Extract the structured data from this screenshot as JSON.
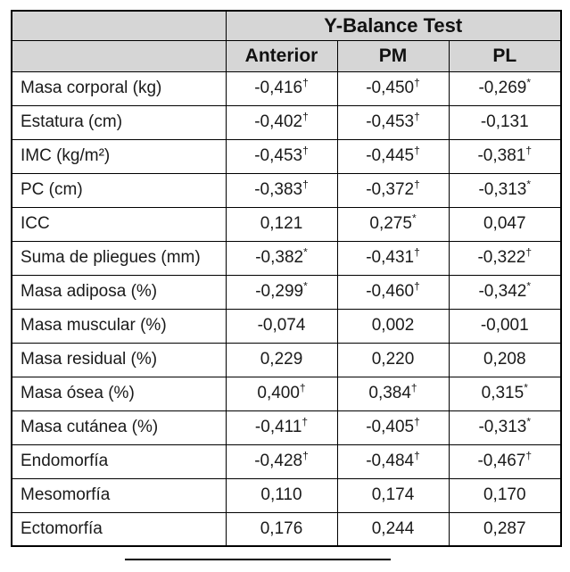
{
  "chart_data": {
    "type": "table",
    "title": "Y-Balance Test",
    "columns": [
      "Anterior",
      "PM",
      "PL"
    ],
    "legend_marks": [
      "†",
      "*"
    ],
    "colors": {
      "header_bg": "#d6d6d6",
      "border": "#000000",
      "text": "#1a1a1a"
    },
    "rows": [
      {
        "label": "Masa corporal (kg)",
        "cells": [
          {
            "v": "-0,416",
            "m": "†"
          },
          {
            "v": "-0,450",
            "m": "†"
          },
          {
            "v": "-0,269",
            "m": "*"
          }
        ]
      },
      {
        "label": "Estatura (cm)",
        "cells": [
          {
            "v": "-0,402",
            "m": "†"
          },
          {
            "v": "-0,453",
            "m": "†"
          },
          {
            "v": "-0,131",
            "m": ""
          }
        ]
      },
      {
        "label": "IMC (kg/m²)",
        "cells": [
          {
            "v": "-0,453",
            "m": "†"
          },
          {
            "v": "-0,445",
            "m": "†"
          },
          {
            "v": "-0,381",
            "m": "†"
          }
        ]
      },
      {
        "label": "PC (cm)",
        "cells": [
          {
            "v": "-0,383",
            "m": "†"
          },
          {
            "v": "-0,372",
            "m": "†"
          },
          {
            "v": "-0,313",
            "m": "*"
          }
        ]
      },
      {
        "label": "ICC",
        "cells": [
          {
            "v": "0,121",
            "m": ""
          },
          {
            "v": "0,275",
            "m": "*"
          },
          {
            "v": "0,047",
            "m": ""
          }
        ]
      },
      {
        "label": "Suma de pliegues (mm)",
        "cells": [
          {
            "v": "-0,382",
            "m": "*"
          },
          {
            "v": "-0,431",
            "m": "†"
          },
          {
            "v": "-0,322",
            "m": "†"
          }
        ]
      },
      {
        "label": "Masa adiposa (%)",
        "cells": [
          {
            "v": "-0,299",
            "m": "*"
          },
          {
            "v": "-0,460",
            "m": "†"
          },
          {
            "v": "-0,342",
            "m": "*"
          }
        ]
      },
      {
        "label": "Masa muscular (%)",
        "cells": [
          {
            "v": "-0,074",
            "m": ""
          },
          {
            "v": "0,002",
            "m": ""
          },
          {
            "v": "-0,001",
            "m": ""
          }
        ]
      },
      {
        "label": "Masa residual (%)",
        "cells": [
          {
            "v": "0,229",
            "m": ""
          },
          {
            "v": "0,220",
            "m": ""
          },
          {
            "v": "0,208",
            "m": ""
          }
        ]
      },
      {
        "label": "Masa ósea (%)",
        "cells": [
          {
            "v": "0,400",
            "m": "†"
          },
          {
            "v": "0,384",
            "m": "†"
          },
          {
            "v": "0,315",
            "m": "*"
          }
        ]
      },
      {
        "label": "Masa cutánea (%)",
        "cells": [
          {
            "v": "-0,411",
            "m": "†"
          },
          {
            "v": "-0,405",
            "m": "†"
          },
          {
            "v": "-0,313",
            "m": "*"
          }
        ]
      },
      {
        "label": "Endomorfía",
        "cells": [
          {
            "v": "-0,428",
            "m": "†"
          },
          {
            "v": "-0,484",
            "m": "†"
          },
          {
            "v": "-0,467",
            "m": "†"
          }
        ]
      },
      {
        "label": "Mesomorfía",
        "cells": [
          {
            "v": "0,110",
            "m": ""
          },
          {
            "v": "0,174",
            "m": ""
          },
          {
            "v": "0,170",
            "m": ""
          }
        ]
      },
      {
        "label": "Ectomorfía",
        "cells": [
          {
            "v": "0,176",
            "m": ""
          },
          {
            "v": "0,244",
            "m": ""
          },
          {
            "v": "0,287",
            "m": ""
          }
        ]
      }
    ]
  }
}
